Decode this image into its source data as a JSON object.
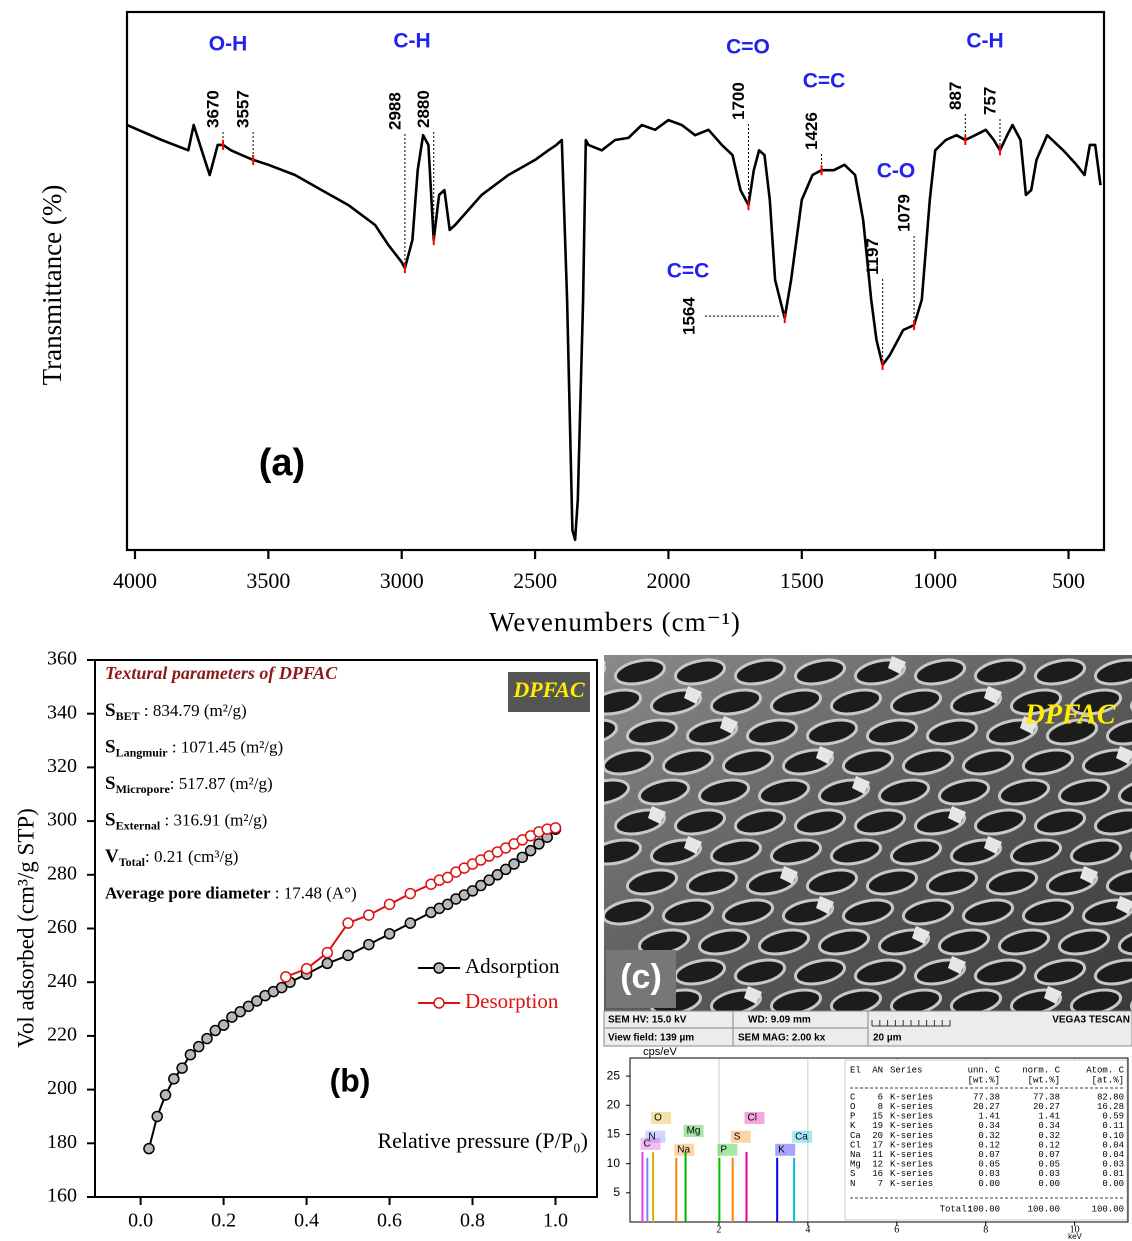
{
  "chart_data": [
    {
      "type": "line",
      "y_label": "Transmittance (%)",
      "x_label": "Wevenumbers (cm⁻¹)",
      "panel_label": "(a)",
      "color": "#000000",
      "annotation_color": "#2222ee",
      "peak_marker_color": "#ff0000",
      "xlim": [
        4030,
        367
      ],
      "ylim": [
        0,
        100
      ],
      "xticks": [
        4000,
        3500,
        3000,
        2500,
        2000,
        1500,
        1000,
        500
      ],
      "x": [
        4030,
        3900,
        3800,
        3780,
        3750,
        3720,
        3690,
        3670,
        3640,
        3600,
        3557,
        3500,
        3400,
        3300,
        3200,
        3100,
        3050,
        3000,
        2988,
        2960,
        2940,
        2920,
        2900,
        2880,
        2860,
        2840,
        2820,
        2800,
        2700,
        2600,
        2500,
        2450,
        2420,
        2400,
        2380,
        2360,
        2350,
        2340,
        2320,
        2310,
        2300,
        2250,
        2200,
        2150,
        2100,
        2050,
        2000,
        1950,
        1900,
        1850,
        1800,
        1760,
        1730,
        1700,
        1680,
        1660,
        1640,
        1620,
        1600,
        1564,
        1540,
        1500,
        1460,
        1426,
        1380,
        1340,
        1300,
        1270,
        1240,
        1220,
        1197,
        1170,
        1120,
        1079,
        1050,
        1020,
        1000,
        960,
        920,
        887,
        850,
        810,
        780,
        757,
        730,
        710,
        680,
        660,
        640,
        620,
        580,
        520,
        470,
        440,
        420,
        400,
        380
      ],
      "values": [
        79.0,
        76.2,
        74.3,
        79.0,
        74.3,
        69.7,
        75.3,
        75.3,
        74.3,
        73.4,
        72.5,
        71.6,
        69.7,
        66.9,
        64.1,
        60.4,
        56.7,
        53.5,
        52.4,
        57.6,
        70.6,
        77.1,
        75.3,
        57.6,
        66.0,
        66.9,
        59.5,
        60.4,
        66.0,
        69.7,
        72.5,
        74.3,
        75.3,
        76.2,
        46.5,
        3.7,
        1.9,
        9.3,
        46.5,
        76.2,
        75.3,
        74.3,
        76.2,
        76.6,
        79.0,
        78.1,
        79.9,
        79.0,
        77.1,
        78.1,
        75.3,
        73.4,
        66.9,
        64.1,
        70.6,
        74.3,
        73.4,
        65.1,
        50.2,
        43.1,
        50.2,
        65.1,
        69.7,
        70.6,
        70.6,
        71.6,
        69.7,
        61.3,
        46.5,
        39.0,
        34.4,
        36.2,
        40.9,
        41.8,
        46.5,
        65.1,
        74.3,
        76.2,
        77.1,
        76.2,
        77.1,
        78.1,
        76.2,
        74.3,
        77.1,
        79.0,
        76.2,
        66.0,
        66.9,
        72.5,
        77.1,
        74.3,
        71.6,
        69.7,
        75.3,
        75.3,
        67.8
      ],
      "peak_labels": [
        3670,
        3557,
        2988,
        2880,
        1700,
        1426,
        1564,
        1197,
        1079,
        887,
        757
      ],
      "group_labels": [
        "O-H",
        "C-H",
        "C=O",
        "C=C",
        "C=C",
        "C-O",
        "C-H"
      ]
    },
    {
      "type": "line",
      "y_label": "Vol adsorbed (cm³/g STP)",
      "x_label": "Relative pressure (P/P₀)",
      "panel_label": "(b)",
      "badge": "DPFAC",
      "badge_color": "#555555",
      "badge_text_color": "#ffee00",
      "textural_title": "Textural parameters of DPFAC",
      "textural_color": "#8b1a1a",
      "textural": [
        {
          "symbol": "S",
          "sub": "BET",
          "text": " : 834.79 (m²/g)"
        },
        {
          "symbol": "S",
          "sub": "Langmuir",
          "text": " : 1071.45 (m²/g)"
        },
        {
          "symbol": "S",
          "sub": "Micropore",
          "text": ": 517.87 (m²/g)"
        },
        {
          "symbol": "S",
          "sub": "External",
          "text": " :  316.91 (m²/g)"
        },
        {
          "symbol": "V",
          "sub": "Total",
          "text": ": 0.21 (cm³/g)"
        },
        {
          "symbol": "Average pore diameter",
          "text": " : 17.48 (A°)"
        }
      ],
      "xlim": [
        -0.11,
        1.1
      ],
      "ylim": [
        160,
        360
      ],
      "xticks": [
        {
          "value": 0,
          "label": "0.0"
        },
        0.2,
        0.4,
        0.6,
        0.8,
        {
          "value": 1,
          "label": "1.0"
        }
      ],
      "yticks": [
        160,
        180,
        200,
        220,
        240,
        260,
        280,
        300,
        320,
        340,
        360
      ],
      "legend": "right",
      "series": [
        {
          "name": "Adsorption",
          "color": "#000000",
          "marker_fill": "#b8b8b8",
          "x": [
            0.02,
            0.04,
            0.06,
            0.08,
            0.1,
            0.12,
            0.14,
            0.16,
            0.18,
            0.2,
            0.22,
            0.24,
            0.26,
            0.28,
            0.3,
            0.32,
            0.34,
            0.36,
            0.4,
            0.45,
            0.5,
            0.55,
            0.6,
            0.65,
            0.7,
            0.72,
            0.74,
            0.76,
            0.78,
            0.8,
            0.82,
            0.84,
            0.86,
            0.88,
            0.9,
            0.92,
            0.94,
            0.96,
            0.98,
            1.0
          ],
          "values": [
            178,
            190,
            198,
            204,
            208,
            213,
            216,
            219,
            222,
            224,
            227,
            229,
            231,
            233,
            235,
            236.5,
            238,
            240,
            243,
            247,
            250,
            254,
            258,
            262,
            266,
            267.5,
            269,
            271,
            272.5,
            274,
            276,
            278,
            280,
            282,
            284,
            286.5,
            289,
            291.5,
            294,
            297
          ]
        },
        {
          "name": "Desorption",
          "color": "#dd1111",
          "marker_fill": "#ffffff",
          "x": [
            0.35,
            0.4,
            0.45,
            0.5,
            0.55,
            0.6,
            0.65,
            0.7,
            0.72,
            0.74,
            0.76,
            0.78,
            0.8,
            0.82,
            0.84,
            0.86,
            0.88,
            0.9,
            0.92,
            0.94,
            0.96,
            0.98,
            1.0
          ],
          "values": [
            242,
            245,
            251,
            262,
            265,
            269,
            273,
            276.5,
            278,
            279,
            281,
            282.5,
            284,
            285.5,
            287,
            288.5,
            290,
            291.5,
            293,
            294.5,
            296,
            297,
            297.5
          ]
        }
      ]
    },
    {
      "type": "spectrum",
      "y_label": "cps/eV",
      "x_label": "keV",
      "grid": true,
      "xlim": [
        0,
        11.2
      ],
      "ylim": [
        0,
        28.1
      ],
      "xticks": [
        2,
        4,
        6,
        8,
        10
      ],
      "yticks": [
        5,
        10,
        15,
        20,
        25
      ],
      "categories": [
        "C",
        "N",
        "O",
        "Na",
        "Mg",
        "P",
        "S",
        "Cl",
        "K",
        "Ca"
      ],
      "x": [
        0.28,
        0.39,
        0.52,
        1.04,
        1.25,
        2.01,
        2.31,
        2.62,
        3.31,
        3.69
      ],
      "values": [
        12,
        11,
        12,
        11,
        12,
        11,
        11,
        12,
        11,
        11
      ],
      "colors": [
        "#e040e0",
        "#8080ff",
        "#d0b000",
        "#ff8000",
        "#00b000",
        "#00c000",
        "#ff8000",
        "#e000a0",
        "#0000ff",
        "#00c0e0"
      ]
    }
  ],
  "sem_image": {
    "label": "DPFAC",
    "panel_label": "(c)",
    "info": [
      "SEM HV: 15.0 kV",
      "WD: 9.09 mm",
      "VEGA3 TESCAN",
      "View field: 139 µm",
      "SEM MAG: 2.00 kx",
      "20 µm"
    ]
  },
  "eds_table": {
    "header": [
      "El",
      "AN",
      "Series",
      "unn. C",
      "norm. C",
      "Atom. C"
    ],
    "units": [
      "[wt.%]",
      "[wt.%]",
      "[at.%]"
    ],
    "rows": [
      [
        "C",
        "6",
        "K-series",
        "77.38",
        "77.38",
        "82.80"
      ],
      [
        "O",
        "8",
        "K-series",
        "20.27",
        "20.27",
        "16.28"
      ],
      [
        "P",
        "15",
        "K-series",
        "1.41",
        "1.41",
        "0.59"
      ],
      [
        "K",
        "19",
        "K-series",
        "0.34",
        "0.34",
        "0.11"
      ],
      [
        "Ca",
        "20",
        "K-series",
        "0.32",
        "0.32",
        "0.10"
      ],
      [
        "Cl",
        "17",
        "K-series",
        "0.12",
        "0.12",
        "0.04"
      ],
      [
        "Na",
        "11",
        "K-series",
        "0.07",
        "0.07",
        "0.04"
      ],
      [
        "Mg",
        "12",
        "K-series",
        "0.05",
        "0.05",
        "0.03"
      ],
      [
        "S",
        "16",
        "K-series",
        "0.03",
        "0.03",
        "0.01"
      ],
      [
        "N",
        "7",
        "K-series",
        "0.00",
        "0.00",
        "0.00"
      ]
    ],
    "total": [
      "Total:",
      "100.00",
      "100.00",
      "100.00"
    ]
  }
}
